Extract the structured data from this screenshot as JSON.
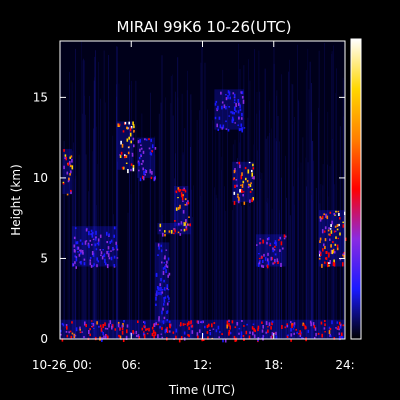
{
  "chart_data": {
    "type": "heatmap",
    "title": "MIRAI 99K6 10-26(UTC)",
    "xlabel": "Time (UTC)",
    "ylabel": "Height (km)",
    "x_range": [
      0,
      24
    ],
    "y_range": [
      0,
      18.5
    ],
    "x_ticks": [
      {
        "value": 0,
        "label": "10-26_00:"
      },
      {
        "value": 6,
        "label": "06:"
      },
      {
        "value": 12,
        "label": "12:"
      },
      {
        "value": 18,
        "label": "18:"
      },
      {
        "value": 24,
        "label": "24:"
      }
    ],
    "y_ticks": [
      {
        "value": 0,
        "label": "0"
      },
      {
        "value": 5,
        "label": "5"
      },
      {
        "value": 10,
        "label": "10"
      },
      {
        "value": 15,
        "label": "15"
      }
    ],
    "colorbar": {
      "stops": [
        "#000000",
        "#1a1aff",
        "#8a2be2",
        "#ff0000",
        "#ff7f00",
        "#ffd700",
        "#ffffff"
      ]
    },
    "features": [
      {
        "t0": 0.0,
        "t1": 24.0,
        "h0": 0.0,
        "h1": 1.2,
        "intensity": 0.55
      },
      {
        "t0": 0.2,
        "t1": 1.0,
        "h0": 9.0,
        "h1": 11.8,
        "intensity": 0.8
      },
      {
        "t0": 1.0,
        "t1": 4.8,
        "h0": 4.5,
        "h1": 7.0,
        "intensity": 0.35
      },
      {
        "t0": 4.8,
        "t1": 6.2,
        "h0": 10.5,
        "h1": 13.5,
        "intensity": 0.95
      },
      {
        "t0": 6.5,
        "t1": 8.0,
        "h0": 10.0,
        "h1": 12.5,
        "intensity": 0.4
      },
      {
        "t0": 9.6,
        "t1": 10.8,
        "h0": 7.0,
        "h1": 9.5,
        "intensity": 0.75
      },
      {
        "t0": 8.2,
        "t1": 11.0,
        "h0": 6.5,
        "h1": 7.2,
        "intensity": 0.8
      },
      {
        "t0": 14.5,
        "t1": 16.3,
        "h0": 8.5,
        "h1": 11.0,
        "intensity": 0.9
      },
      {
        "t0": 13.0,
        "t1": 15.5,
        "h0": 13.0,
        "h1": 15.5,
        "intensity": 0.3
      },
      {
        "t0": 16.5,
        "t1": 19.0,
        "h0": 4.5,
        "h1": 6.5,
        "intensity": 0.45
      },
      {
        "t0": 21.8,
        "t1": 24.0,
        "h0": 4.5,
        "h1": 8.0,
        "intensity": 0.9
      },
      {
        "t0": 8.0,
        "t1": 9.2,
        "h0": 1.0,
        "h1": 6.0,
        "intensity": 0.3
      }
    ]
  }
}
